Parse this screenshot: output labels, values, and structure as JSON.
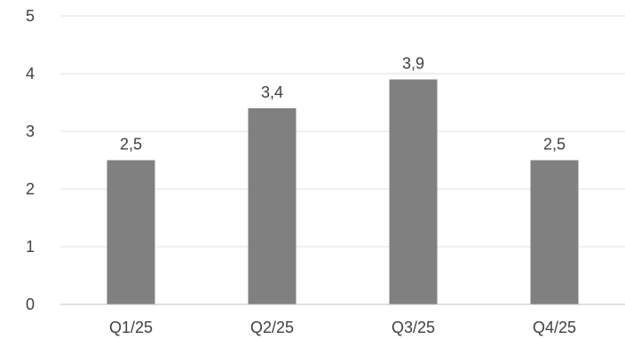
{
  "chart_data": {
    "type": "bar",
    "title": "",
    "xlabel": "",
    "ylabel": "",
    "categories": [
      "Q1/25",
      "Q2/25",
      "Q3/25",
      "Q4/25"
    ],
    "values": [
      2.5,
      3.4,
      3.9,
      2.5
    ],
    "value_labels": [
      "2,5",
      "3,4",
      "3,9",
      "2,5"
    ],
    "ylim": [
      0,
      5
    ],
    "yticks": [
      0,
      1,
      2,
      3,
      4,
      5
    ],
    "ytick_labels": [
      "0",
      "1",
      "2",
      "3",
      "4",
      "5"
    ],
    "grid": true,
    "legend": "none",
    "colors": {
      "bar": "#808080",
      "grid": "#e0e0e0",
      "axis": "#bfbfbf",
      "text": "#404040"
    }
  }
}
